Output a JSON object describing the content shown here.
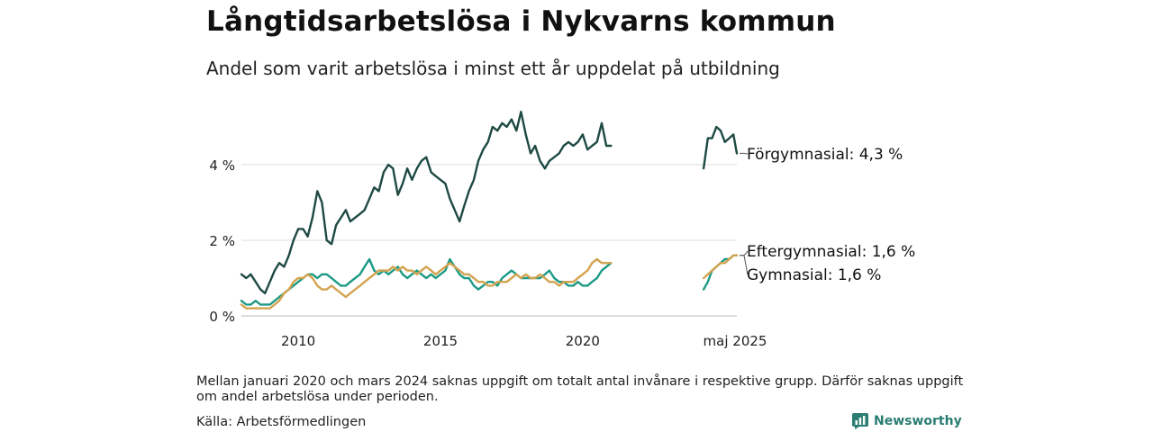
{
  "header": {
    "title": "Långtidsarbetslösa i Nykvarns kommun",
    "subtitle": "Andel som varit arbetslösa i minst ett år uppdelat på utbildning"
  },
  "footer": {
    "note": "Mellan januari 2020 och mars 2024 saknas uppgift om totalt antal invånare i respektive grupp. Därför saknas uppgift om andel arbetslösa under perioden.",
    "source": "Källa: Arbetsförmedlingen",
    "brand": "Newsworthy",
    "brand_icon": "newsworthy-logo-icon",
    "brand_color": "#2a7d73"
  },
  "chart_data": {
    "type": "line",
    "title": "Långtidsarbetslösa i Nykvarns kommun",
    "subtitle": "Andel som varit arbetslösa i minst ett år uppdelat på utbildning",
    "xlabel": "",
    "ylabel": "",
    "y_unit": "%",
    "ylim": [
      0,
      5.8
    ],
    "y_ticks": [
      {
        "value": 0,
        "label": "0 %"
      },
      {
        "value": 2,
        "label": "2 %"
      },
      {
        "value": 4,
        "label": "4 %"
      }
    ],
    "x_ticks": [
      {
        "value": 2010,
        "label": "2010"
      },
      {
        "value": 2015,
        "label": "2015"
      },
      {
        "value": 2020,
        "label": "2020"
      }
    ],
    "x_end_label": "maj 2025",
    "grid": "horizontal",
    "legend": "direct labels at line ends",
    "series": [
      {
        "name": "Förgymnasial",
        "end_label": "Förgymnasial: 4,3 %",
        "color": "#1f4a44",
        "x": [
          2008.0,
          2008.17,
          2008.33,
          2008.5,
          2008.67,
          2008.83,
          2009.0,
          2009.17,
          2009.33,
          2009.5,
          2009.67,
          2009.83,
          2010.0,
          2010.17,
          2010.33,
          2010.5,
          2010.67,
          2010.83,
          2011.0,
          2011.17,
          2011.33,
          2011.5,
          2011.67,
          2011.83,
          2012.0,
          2012.17,
          2012.33,
          2012.5,
          2012.67,
          2012.83,
          2013.0,
          2013.17,
          2013.33,
          2013.5,
          2013.67,
          2013.83,
          2014.0,
          2014.17,
          2014.33,
          2014.5,
          2014.67,
          2014.83,
          2015.0,
          2015.17,
          2015.33,
          2015.5,
          2015.67,
          2015.83,
          2016.0,
          2016.17,
          2016.33,
          2016.5,
          2016.67,
          2016.83,
          2017.0,
          2017.17,
          2017.33,
          2017.5,
          2017.67,
          2017.83,
          2018.0,
          2018.17,
          2018.33,
          2018.5,
          2018.67,
          2018.83,
          2019.0,
          2019.17,
          2019.33,
          2019.5,
          2019.67,
          2019.83,
          2020.0,
          2020.17,
          2020.33,
          2020.5,
          2020.67,
          2020.83,
          2021.0,
          null,
          2024.25,
          2024.4,
          2024.55,
          2024.7,
          2024.85,
          2025.0,
          2025.15,
          2025.3,
          2025.42
        ],
        "values": [
          1.1,
          1.0,
          1.1,
          0.9,
          0.7,
          0.6,
          0.9,
          1.2,
          1.4,
          1.3,
          1.6,
          2.0,
          2.3,
          2.3,
          2.1,
          2.6,
          3.3,
          3.0,
          2.0,
          1.9,
          2.4,
          2.6,
          2.8,
          2.5,
          2.6,
          2.7,
          2.8,
          3.1,
          3.4,
          3.3,
          3.8,
          4.0,
          3.9,
          3.2,
          3.5,
          3.9,
          3.6,
          3.9,
          4.1,
          4.2,
          3.8,
          3.7,
          3.6,
          3.5,
          3.1,
          2.8,
          2.5,
          2.9,
          3.3,
          3.6,
          4.1,
          4.4,
          4.6,
          5.0,
          4.9,
          5.1,
          5.0,
          5.2,
          4.9,
          5.4,
          4.8,
          4.3,
          4.5,
          4.1,
          3.9,
          4.1,
          4.2,
          4.3,
          4.5,
          4.6,
          4.5,
          4.6,
          4.8,
          4.4,
          4.5,
          4.6,
          5.1,
          4.5,
          4.5,
          null,
          3.9,
          4.7,
          4.7,
          5.0,
          4.9,
          4.6,
          4.7,
          4.8,
          4.3
        ]
      },
      {
        "name": "Eftergymnasial",
        "end_label": "Eftergymnasial: 1,6 %",
        "color": "#d4a34f",
        "x": [
          2008.0,
          2008.17,
          2008.33,
          2008.5,
          2008.67,
          2008.83,
          2009.0,
          2009.17,
          2009.33,
          2009.5,
          2009.67,
          2009.83,
          2010.0,
          2010.17,
          2010.33,
          2010.5,
          2010.67,
          2010.83,
          2011.0,
          2011.17,
          2011.33,
          2011.5,
          2011.67,
          2011.83,
          2012.0,
          2012.17,
          2012.33,
          2012.5,
          2012.67,
          2012.83,
          2013.0,
          2013.17,
          2013.33,
          2013.5,
          2013.67,
          2013.83,
          2014.0,
          2014.17,
          2014.33,
          2014.5,
          2014.67,
          2014.83,
          2015.0,
          2015.17,
          2015.33,
          2015.5,
          2015.67,
          2015.83,
          2016.0,
          2016.17,
          2016.33,
          2016.5,
          2016.67,
          2016.83,
          2017.0,
          2017.17,
          2017.33,
          2017.5,
          2017.67,
          2017.83,
          2018.0,
          2018.17,
          2018.33,
          2018.5,
          2018.67,
          2018.83,
          2019.0,
          2019.17,
          2019.33,
          2019.5,
          2019.67,
          2019.83,
          2020.0,
          2020.17,
          2020.33,
          2020.5,
          2020.67,
          2020.83,
          2021.0,
          null,
          2024.25,
          2024.4,
          2024.55,
          2024.7,
          2024.85,
          2025.0,
          2025.15,
          2025.3,
          2025.42
        ],
        "values": [
          0.3,
          0.2,
          0.2,
          0.2,
          0.2,
          0.2,
          0.2,
          0.3,
          0.4,
          0.6,
          0.7,
          0.9,
          1.0,
          1.0,
          1.1,
          1.0,
          0.8,
          0.7,
          0.7,
          0.8,
          0.7,
          0.6,
          0.5,
          0.6,
          0.7,
          0.8,
          0.9,
          1.0,
          1.1,
          1.2,
          1.2,
          1.2,
          1.3,
          1.2,
          1.3,
          1.2,
          1.2,
          1.1,
          1.2,
          1.3,
          1.2,
          1.1,
          1.2,
          1.3,
          1.4,
          1.3,
          1.2,
          1.1,
          1.1,
          1.0,
          0.9,
          0.9,
          0.8,
          0.8,
          0.9,
          0.9,
          0.9,
          1.0,
          1.1,
          1.0,
          1.1,
          1.0,
          1.0,
          1.1,
          1.0,
          0.9,
          0.9,
          0.8,
          0.9,
          0.9,
          0.9,
          1.0,
          1.1,
          1.2,
          1.4,
          1.5,
          1.4,
          1.4,
          1.4,
          null,
          1.0,
          1.1,
          1.2,
          1.3,
          1.4,
          1.4,
          1.5,
          1.6,
          1.6
        ]
      },
      {
        "name": "Gymnasial",
        "end_label": "Gymnasial: 1,6 %",
        "color": "#1c9a85",
        "x": [
          2008.0,
          2008.17,
          2008.33,
          2008.5,
          2008.67,
          2008.83,
          2009.0,
          2009.17,
          2009.33,
          2009.5,
          2009.67,
          2009.83,
          2010.0,
          2010.17,
          2010.33,
          2010.5,
          2010.67,
          2010.83,
          2011.0,
          2011.17,
          2011.33,
          2011.5,
          2011.67,
          2011.83,
          2012.0,
          2012.17,
          2012.33,
          2012.5,
          2012.67,
          2012.83,
          2013.0,
          2013.17,
          2013.33,
          2013.5,
          2013.67,
          2013.83,
          2014.0,
          2014.17,
          2014.33,
          2014.5,
          2014.67,
          2014.83,
          2015.0,
          2015.17,
          2015.33,
          2015.5,
          2015.67,
          2015.83,
          2016.0,
          2016.17,
          2016.33,
          2016.5,
          2016.67,
          2016.83,
          2017.0,
          2017.17,
          2017.33,
          2017.5,
          2017.67,
          2017.83,
          2018.0,
          2018.17,
          2018.33,
          2018.5,
          2018.67,
          2018.83,
          2019.0,
          2019.17,
          2019.33,
          2019.5,
          2019.67,
          2019.83,
          2020.0,
          2020.17,
          2020.33,
          2020.5,
          2020.67,
          2020.83,
          2021.0,
          null,
          2024.25,
          2024.4,
          2024.55,
          2024.7,
          2024.85,
          2025.0,
          2025.15,
          2025.3,
          2025.42
        ],
        "values": [
          0.4,
          0.3,
          0.3,
          0.4,
          0.3,
          0.3,
          0.3,
          0.4,
          0.5,
          0.6,
          0.7,
          0.8,
          0.9,
          1.0,
          1.1,
          1.1,
          1.0,
          1.1,
          1.1,
          1.0,
          0.9,
          0.8,
          0.8,
          0.9,
          1.0,
          1.1,
          1.3,
          1.5,
          1.2,
          1.1,
          1.2,
          1.1,
          1.2,
          1.3,
          1.1,
          1.0,
          1.1,
          1.2,
          1.1,
          1.0,
          1.1,
          1.0,
          1.1,
          1.2,
          1.5,
          1.3,
          1.1,
          1.0,
          1.0,
          0.8,
          0.7,
          0.8,
          0.9,
          0.9,
          0.8,
          1.0,
          1.1,
          1.2,
          1.1,
          1.0,
          1.0,
          1.0,
          1.0,
          1.0,
          1.1,
          1.2,
          1.0,
          0.9,
          0.9,
          0.8,
          0.8,
          0.9,
          0.8,
          0.8,
          0.9,
          1.0,
          1.2,
          1.3,
          1.4,
          null,
          0.7,
          0.9,
          1.2,
          1.3,
          1.4,
          1.5,
          1.5,
          1.6,
          1.6
        ]
      }
    ]
  }
}
